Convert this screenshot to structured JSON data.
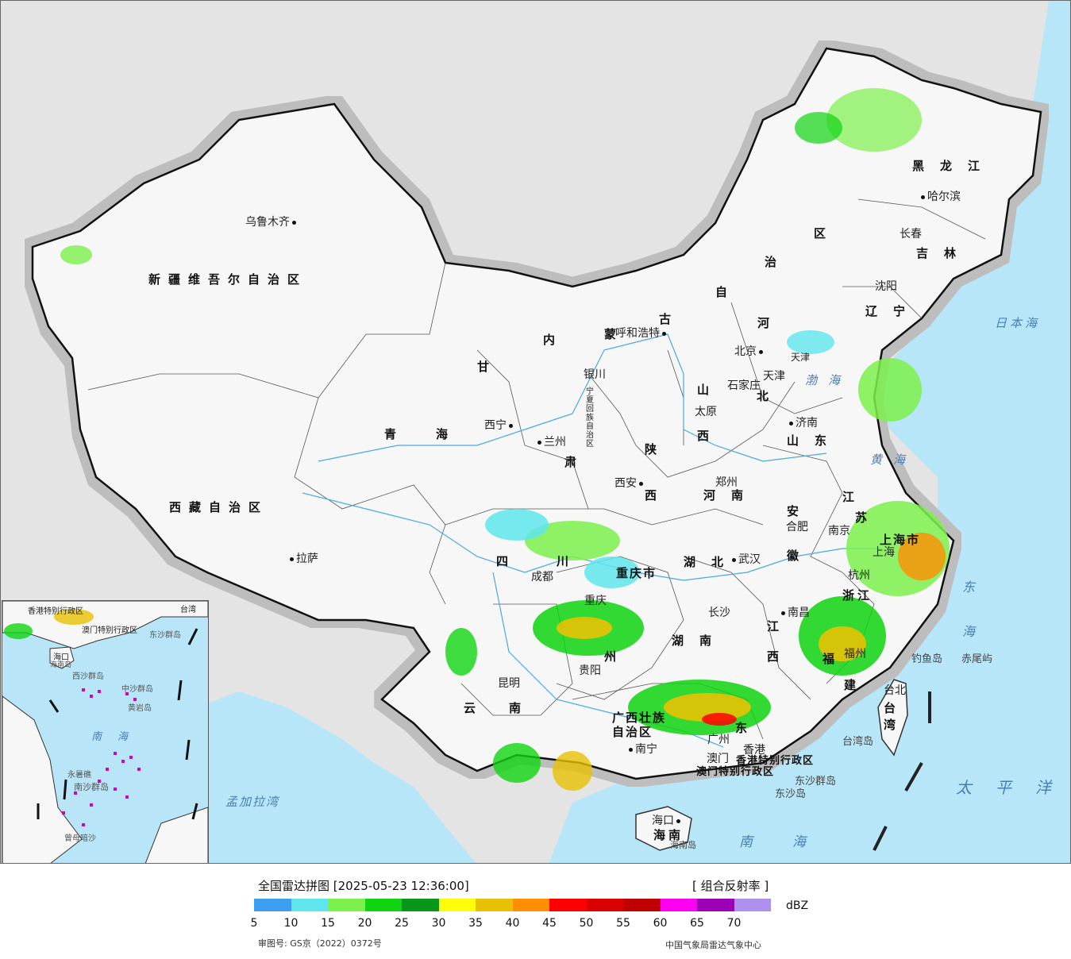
{
  "legend": {
    "title": "全国雷达拼图 [2025-05-23 12:36:00]",
    "product": "[ 组合反射率 ]",
    "unit": "dBZ",
    "approval_no": "审图号: GS京（2022）0372号",
    "agency": "中国气象局雷达气象中心",
    "colors": [
      "#3d9ff0",
      "#5fe6ec",
      "#7cf04b",
      "#10d411",
      "#08961a",
      "#fffd08",
      "#e8c104",
      "#ff8f01",
      "#ff0000",
      "#d90000",
      "#c00000",
      "#ff00f0",
      "#9c00b5",
      "#ae91ee"
    ],
    "ticks": [
      "5",
      "10",
      "15",
      "20",
      "25",
      "30",
      "35",
      "40",
      "45",
      "50",
      "55",
      "60",
      "65",
      "70"
    ]
  },
  "provinces": {
    "xinjiang": "新疆维吾尔自治区",
    "xizang": "西藏自治区",
    "qinghai": "青海",
    "gansu": "甘",
    "gansu2": "肃",
    "neimenggu1": "内",
    "neimenggu2": "蒙",
    "neimenggu3": "古",
    "neimenggu4": "自",
    "neimenggu5": "治",
    "neimenggu6": "区",
    "heilongjiang": "黑龙江",
    "jilin": "吉林",
    "liaoning": "辽宁",
    "hebei1": "河",
    "hebei2": "北",
    "shanxi1": "山",
    "shanxi2": "西",
    "shaanxi1": "陕",
    "shaanxi2": "西",
    "shandong": "山东",
    "henan": "河南",
    "jiangsu1": "江",
    "jiangsu2": "苏",
    "anhui1": "安",
    "anhui2": "徽",
    "hubei": "湖北",
    "sichuan1": "四",
    "sichuan2": "川",
    "chongqing": "重庆市",
    "hunan": "湖南",
    "jiangxi1": "江",
    "jiangxi2": "西",
    "zhejiang": "浙江",
    "fujian1": "福",
    "fujian2": "建",
    "guizhou": "州",
    "yunnan1": "云",
    "yunnan2": "南",
    "guangxi1": "广西壮族",
    "guangxi2": "自治区",
    "guangdong": "东",
    "hainan": "海南",
    "taiwan": "台湾",
    "shanghai": "上海市",
    "ningxia": "宁夏回族自治区",
    "tianjin": "天津",
    "hk": "香港特别行政区",
    "macau": "澳门特别行政区"
  },
  "cities": {
    "urumqi": "乌鲁木齐",
    "lhasa": "拉萨",
    "xining": "西宁",
    "lanzhou": "兰州",
    "yinchuan": "银川",
    "hohhot": "呼和浩特",
    "beijing": "北京",
    "tianjin": "天津",
    "shijiazhuang": "石家庄",
    "taiyuan": "太原",
    "jinan": "济南",
    "zhengzhou": "郑州",
    "xian": "西安",
    "hefei": "合肥",
    "nanjing": "南京",
    "shanghai": "上海",
    "hangzhou": "杭州",
    "wuhan": "武汉",
    "chengdu": "成都",
    "chongqing": "重庆",
    "changsha": "长沙",
    "nanchang": "南昌",
    "fuzhou": "福州",
    "guiyang": "贵阳",
    "kunming": "昆明",
    "nanning": "南宁",
    "guangzhou": "广州",
    "hongkong": "香港",
    "macau": "澳门",
    "haikou": "海口",
    "taipei": "台北",
    "harbin": "哈尔滨",
    "changchun": "长春",
    "shenyang": "沈阳"
  },
  "seas": {
    "japan_sea": "日本海",
    "bohai": "渤海",
    "yellow_sea": "黄海",
    "east_sea": "东海",
    "pacific": "太平洋",
    "south_sea": "南海",
    "bengal": "孟加拉湾"
  },
  "islands": {
    "diaoyu": "钓鱼岛",
    "chiwei": "赤尾屿",
    "taiwan_island": "台湾岛",
    "dongsha_islands": "东沙群岛",
    "dongsha": "东沙岛",
    "hainan_island": "海南岛"
  },
  "inset": {
    "hk": "香港特别行政区",
    "macau": "澳门特别行政区",
    "dongsha": "东沙群岛",
    "haikou": "海口",
    "hainan": "海南岛",
    "xisha": "西沙群岛",
    "zhongsha": "中沙群岛",
    "huangyan": "黄岩岛",
    "south_sea": "南海",
    "nansha": "南沙群岛",
    "yongshu": "永暑礁",
    "zengmu": "曾母暗沙",
    "taiwan": "台湾"
  }
}
